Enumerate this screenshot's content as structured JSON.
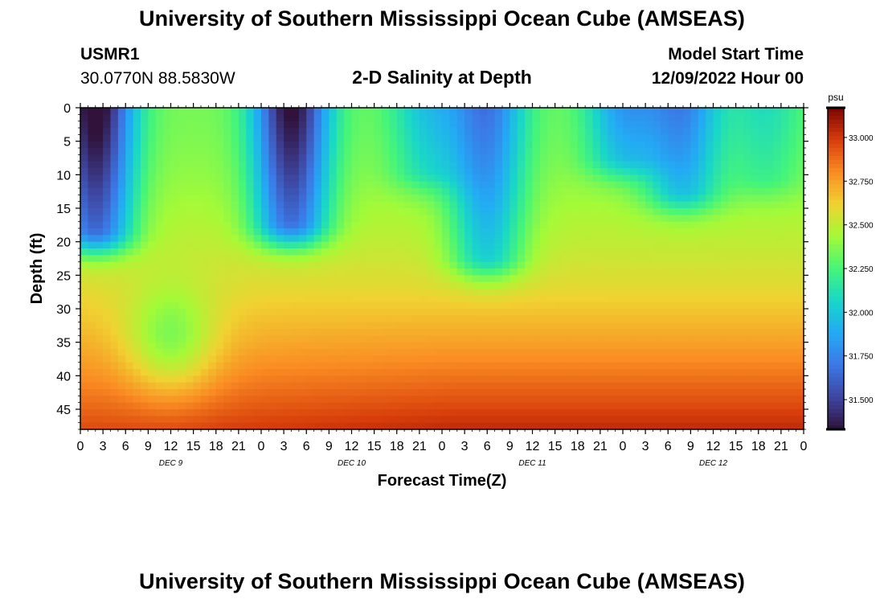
{
  "header": {
    "title": "University of Southern Mississippi Ocean Cube (AMSEAS)",
    "station_id": "USMR1",
    "coords": "30.0770N  88.5830W",
    "subtitle": "2-D Salinity at Depth",
    "start_label": "Model Start Time",
    "start_value": "12/09/2022 Hour 00"
  },
  "footer": {
    "title": "University of Southern Mississippi Ocean Cube (AMSEAS)"
  },
  "chart_data": {
    "type": "heatmap",
    "title": "2-D Salinity at Depth",
    "xlabel": "Forecast Time(Z)",
    "ylabel": "Depth (ft)",
    "x_range_hours": [
      0,
      96
    ],
    "y_range_ft": [
      0,
      48
    ],
    "x_ticks": [
      "0",
      "3",
      "6",
      "9",
      "12",
      "15",
      "18",
      "21",
      "0",
      "3",
      "6",
      "9",
      "12",
      "15",
      "18",
      "21",
      "0",
      "3",
      "6",
      "9",
      "12",
      "15",
      "18",
      "21",
      "0",
      "3",
      "6",
      "9",
      "12",
      "15",
      "18",
      "21",
      "0"
    ],
    "y_ticks": [
      "0",
      "5",
      "10",
      "15",
      "20",
      "25",
      "30",
      "35",
      "40",
      "45"
    ],
    "day_labels": [
      {
        "label": "DEC 9",
        "hour": 12
      },
      {
        "label": "DEC 10",
        "hour": 36
      },
      {
        "label": "DEC 11",
        "hour": 60
      },
      {
        "label": "DEC 12",
        "hour": 84
      }
    ],
    "colorbar": {
      "unit": "psu",
      "min": 31.33,
      "max": 33.17,
      "ticks": [
        "31.500",
        "31.750",
        "32.000",
        "32.250",
        "32.500",
        "32.750",
        "33.000"
      ],
      "tick_values": [
        31.5,
        31.75,
        32.0,
        32.25,
        32.5,
        32.75,
        33.0
      ]
    },
    "fresh_lenses": [
      {
        "hour": 2,
        "bottom_ft": 18,
        "surface_psu": 31.35
      },
      {
        "hour": 28,
        "bottom_ft": 17,
        "surface_psu": 31.4
      },
      {
        "hour": 46,
        "bottom_ft": 9,
        "surface_psu": 32.1
      },
      {
        "hour": 54,
        "bottom_ft": 22,
        "surface_psu": 31.8
      },
      {
        "hour": 72,
        "bottom_ft": 7,
        "surface_psu": 31.95
      },
      {
        "hour": 80,
        "bottom_ft": 12,
        "surface_psu": 31.85
      },
      {
        "hour": 91,
        "bottom_ft": 10,
        "surface_psu": 32.2
      }
    ],
    "deep_fresh_pocket": {
      "hour": 12,
      "depth_ft": 35,
      "psu": 32.25
    },
    "bottom_max_psu": 33.15
  }
}
